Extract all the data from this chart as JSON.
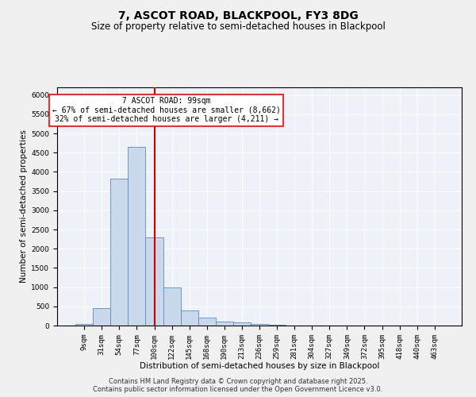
{
  "title": "7, ASCOT ROAD, BLACKPOOL, FY3 8DG",
  "subtitle": "Size of property relative to semi-detached houses in Blackpool",
  "xlabel": "Distribution of semi-detached houses by size in Blackpool",
  "ylabel": "Number of semi-detached properties",
  "categories": [
    "9sqm",
    "31sqm",
    "54sqm",
    "77sqm",
    "100sqm",
    "122sqm",
    "145sqm",
    "168sqm",
    "190sqm",
    "213sqm",
    "236sqm",
    "259sqm",
    "281sqm",
    "304sqm",
    "327sqm",
    "349sqm",
    "372sqm",
    "395sqm",
    "418sqm",
    "440sqm",
    "463sqm"
  ],
  "values": [
    50,
    450,
    3820,
    4650,
    2300,
    1000,
    400,
    200,
    100,
    75,
    50,
    20,
    10,
    5,
    5,
    5,
    5,
    5,
    5,
    5,
    5
  ],
  "bar_color": "#c9d9eb",
  "bar_edge_color": "#5b8cbf",
  "vline_x_index": 4,
  "vline_color": "#cc0000",
  "property_label": "7 ASCOT ROAD: 99sqm",
  "pct_smaller": "67% of semi-detached houses are smaller (8,662)",
  "pct_larger": "32% of semi-detached houses are larger (4,211)",
  "arrow_left": "←",
  "arrow_right": "→",
  "ylim": [
    0,
    6200
  ],
  "yticks": [
    0,
    500,
    1000,
    1500,
    2000,
    2500,
    3000,
    3500,
    4000,
    4500,
    5000,
    5500,
    6000
  ],
  "bg_color": "#eef2f8",
  "grid_color": "#ffffff",
  "footer1": "Contains HM Land Registry data © Crown copyright and database right 2025.",
  "footer2": "Contains public sector information licensed under the Open Government Licence v3.0.",
  "title_fontsize": 10,
  "subtitle_fontsize": 8.5,
  "axis_label_fontsize": 7.5,
  "tick_fontsize": 6.5,
  "annotation_fontsize": 7,
  "footer_fontsize": 6
}
